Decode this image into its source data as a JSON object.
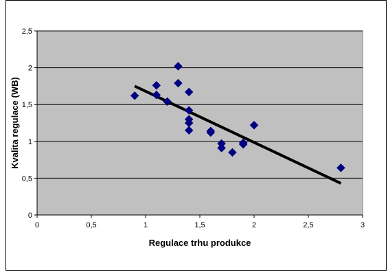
{
  "chart_data": {
    "type": "scatter",
    "xlabel": "Regulace trhu produkce",
    "ylabel": "Kvalita regulace (WB)",
    "xlim": [
      0,
      3
    ],
    "ylim": [
      0,
      2.5
    ],
    "x_ticks": [
      "0",
      "0,5",
      "1",
      "1,5",
      "2",
      "2,5",
      "3"
    ],
    "y_ticks": [
      "0",
      "0,5",
      "1",
      "1,5",
      "2",
      "2,5"
    ],
    "x_tick_values": [
      0,
      0.5,
      1,
      1.5,
      2,
      2.5,
      3
    ],
    "y_tick_values": [
      0,
      0.5,
      1,
      1.5,
      2,
      2.5
    ],
    "grid": "horizontal",
    "legend": "none",
    "points": [
      {
        "x": 0.9,
        "y": 1.62
      },
      {
        "x": 1.1,
        "y": 1.76
      },
      {
        "x": 1.1,
        "y": 1.63
      },
      {
        "x": 1.2,
        "y": 1.54
      },
      {
        "x": 1.3,
        "y": 2.02
      },
      {
        "x": 1.3,
        "y": 1.79
      },
      {
        "x": 1.4,
        "y": 1.67
      },
      {
        "x": 1.4,
        "y": 1.42
      },
      {
        "x": 1.4,
        "y": 1.3
      },
      {
        "x": 1.4,
        "y": 1.25
      },
      {
        "x": 1.4,
        "y": 1.15
      },
      {
        "x": 1.6,
        "y": 1.14
      },
      {
        "x": 1.6,
        "y": 1.12
      },
      {
        "x": 1.7,
        "y": 0.97
      },
      {
        "x": 1.7,
        "y": 0.91
      },
      {
        "x": 1.8,
        "y": 0.85
      },
      {
        "x": 1.9,
        "y": 0.96
      },
      {
        "x": 1.9,
        "y": 0.98
      },
      {
        "x": 2.0,
        "y": 1.22
      },
      {
        "x": 2.8,
        "y": 0.64
      }
    ],
    "trendline": {
      "x": [
        0.9,
        2.8
      ],
      "y": [
        1.75,
        0.43
      ]
    },
    "colors": {
      "plot_area": "#c0c0c0",
      "marker": "#000080",
      "trendline": "#000000",
      "grid": "#000000"
    }
  }
}
